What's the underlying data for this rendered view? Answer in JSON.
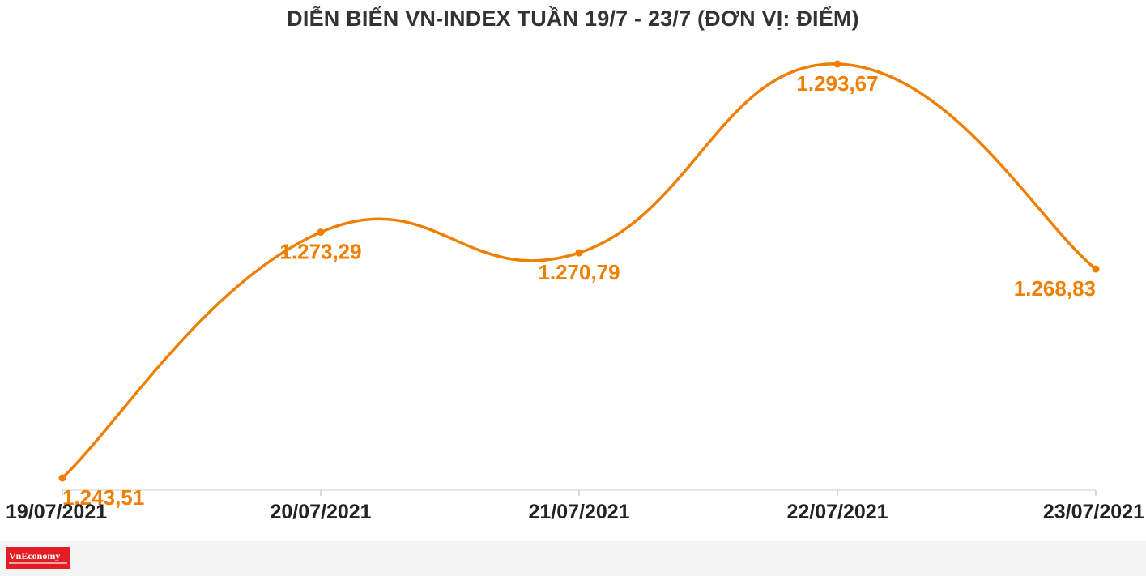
{
  "chart_data": {
    "type": "line",
    "title": "DIỄN BIẾN VN-INDEX TUẦN 19/7 - 23/7 (ĐƠN VỊ: ĐIỂM)",
    "categories": [
      "19/07/2021",
      "20/07/2021",
      "21/07/2021",
      "22/07/2021",
      "23/07/2021"
    ],
    "values": [
      1243.51,
      1273.29,
      1270.79,
      1293.67,
      1268.83
    ],
    "value_labels": [
      "1.243,51",
      "1.273,29",
      "1.270,79",
      "1.293,67",
      "1.268,83"
    ],
    "smooth": true,
    "grid": false,
    "legend": "none",
    "line_color": "#ee7f00",
    "label_color": "#ee7f00",
    "axis_label_color": "#222222"
  },
  "brand": {
    "logo_text": "VnEconomy",
    "logo_color": "#e41d25"
  }
}
